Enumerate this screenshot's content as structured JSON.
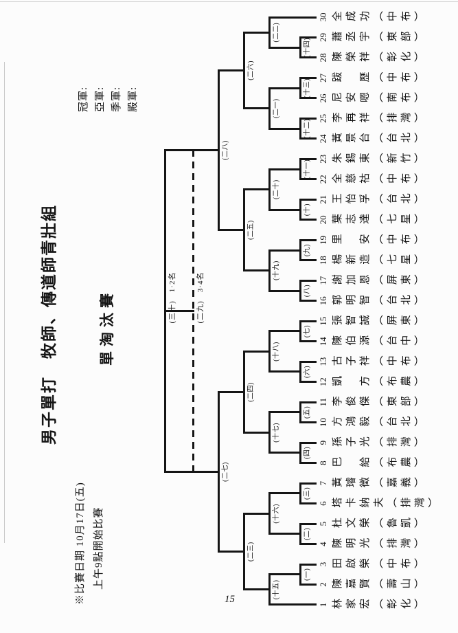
{
  "page": {
    "number": "15",
    "line_color": "#151515",
    "paper_color": "#fcfcfc"
  },
  "titles": {
    "main": "男子單打　牧師、傳道師青壯組",
    "sub": "單淘汰賽"
  },
  "ranks": {
    "items": [
      "冠軍:",
      "亞軍:",
      "季軍:",
      "殿軍:"
    ]
  },
  "notes": {
    "line1": "※比賽日期 10月17日(五)",
    "line2": "上午9點開始比賽"
  },
  "players": [
    {
      "no": 1,
      "name": "林家宏",
      "team": "彰化"
    },
    {
      "no": 2,
      "name": "陳嘉賢",
      "team": "壽山"
    },
    {
      "no": 3,
      "name": "田啟榮",
      "team": "中布"
    },
    {
      "no": 4,
      "name": "陳明光",
      "team": "排灣"
    },
    {
      "no": 5,
      "name": "杜文榮",
      "team": "魯凱"
    },
    {
      "no": 6,
      "name": "塔卡納夫",
      "team": "排灣"
    },
    {
      "no": 7,
      "name": "黃璿徵",
      "team": "嘉義"
    },
    {
      "no": 8,
      "name": "巴　給",
      "team": "布農"
    },
    {
      "no": 9,
      "name": "孫子光",
      "team": "排灣"
    },
    {
      "no": 10,
      "name": "方鴻毅",
      "team": "台北"
    },
    {
      "no": 11,
      "name": "李俊傑",
      "team": "東部"
    },
    {
      "no": 12,
      "name": "凱　方",
      "team": "布農"
    },
    {
      "no": 13,
      "name": "古子祥",
      "team": "中布"
    },
    {
      "no": 14,
      "name": "陳伯源",
      "team": "台中"
    },
    {
      "no": 15,
      "name": "張智誠",
      "team": "屏東"
    },
    {
      "no": 16,
      "name": "郭明智",
      "team": "台北"
    },
    {
      "no": 17,
      "name": "謝加恩",
      "team": "屏東"
    },
    {
      "no": 18,
      "name": "楊新造",
      "team": "七星"
    },
    {
      "no": 19,
      "name": "里　安",
      "team": "中布"
    },
    {
      "no": 20,
      "name": "葉志達",
      "team": "七星"
    },
    {
      "no": 21,
      "name": "王怡孚",
      "team": "台北"
    },
    {
      "no": 22,
      "name": "全慈祜",
      "team": "中布"
    },
    {
      "no": 23,
      "name": "朱錫東",
      "team": "新竹"
    },
    {
      "no": 24,
      "name": "黃景台",
      "team": "台北"
    },
    {
      "no": 25,
      "name": "李再祥",
      "team": "排灣"
    },
    {
      "no": 26,
      "name": "尼安嗯",
      "team": "南布"
    },
    {
      "no": 27,
      "name": "跋　歷",
      "team": "中布"
    },
    {
      "no": 28,
      "name": "陳榮祥",
      "team": "彰化"
    },
    {
      "no": 29,
      "name": "蕭丞宇",
      "team": "東部"
    },
    {
      "no": 30,
      "name": "全成功",
      "team": "中布"
    }
  ],
  "bracket": {
    "matches": [
      {
        "id": "M1",
        "label": "(一)",
        "round": 1,
        "a": "P2",
        "b": "P3"
      },
      {
        "id": "M2",
        "label": "(二)",
        "round": 1,
        "a": "P4",
        "b": "P5"
      },
      {
        "id": "M3",
        "label": "(三)",
        "round": 1,
        "a": "P6",
        "b": "P7"
      },
      {
        "id": "M4",
        "label": "(四)",
        "round": 1,
        "a": "P8",
        "b": "P9"
      },
      {
        "id": "M5",
        "label": "(五)",
        "round": 1,
        "a": "P10",
        "b": "P11"
      },
      {
        "id": "M6",
        "label": "(六)",
        "round": 1,
        "a": "P12",
        "b": "P13"
      },
      {
        "id": "M7",
        "label": "(七)",
        "round": 1,
        "a": "P14",
        "b": "P15"
      },
      {
        "id": "M8",
        "label": "(八)",
        "round": 1,
        "a": "P16",
        "b": "P17"
      },
      {
        "id": "M9",
        "label": "(九)",
        "round": 1,
        "a": "P18",
        "b": "P19"
      },
      {
        "id": "M10",
        "label": "(十)",
        "round": 1,
        "a": "P20",
        "b": "P21"
      },
      {
        "id": "M11",
        "label": "(十一)",
        "round": 1,
        "a": "P22",
        "b": "P23"
      },
      {
        "id": "M12",
        "label": "(十二)",
        "round": 1,
        "a": "P24",
        "b": "P25"
      },
      {
        "id": "M13",
        "label": "(十三)",
        "round": 1,
        "a": "P26",
        "b": "P27"
      },
      {
        "id": "M14",
        "label": "(十四)",
        "round": 1,
        "a": "P28",
        "b": "P29"
      },
      {
        "id": "M15",
        "label": "(十五)",
        "round": 2,
        "a": "P1",
        "b": "M1"
      },
      {
        "id": "M16",
        "label": "(十六)",
        "round": 2,
        "a": "M2",
        "b": "M3"
      },
      {
        "id": "M17",
        "label": "(十七)",
        "round": 2,
        "a": "M4",
        "b": "M5"
      },
      {
        "id": "M18",
        "label": "(十八)",
        "round": 2,
        "a": "M6",
        "b": "M7"
      },
      {
        "id": "M19",
        "label": "(十九)",
        "round": 2,
        "a": "M8",
        "b": "M9"
      },
      {
        "id": "M20",
        "label": "(二十)",
        "round": 2,
        "a": "M10",
        "b": "M11"
      },
      {
        "id": "M21",
        "label": "(二一)",
        "round": 2,
        "a": "M12",
        "b": "M13"
      },
      {
        "id": "M22",
        "label": "(二二)",
        "round": 2,
        "a": "M14",
        "b": "P30"
      },
      {
        "id": "M23",
        "label": "(二三)",
        "round": 3,
        "a": "M15",
        "b": "M16"
      },
      {
        "id": "M24",
        "label": "(二四)",
        "round": 3,
        "a": "M17",
        "b": "M18"
      },
      {
        "id": "M25",
        "label": "(二五)",
        "round": 3,
        "a": "M19",
        "b": "M20"
      },
      {
        "id": "M26",
        "label": "(二六)",
        "round": 3,
        "a": "M21",
        "b": "M22"
      },
      {
        "id": "M27",
        "label": "(二七)",
        "round": 4,
        "a": "M23",
        "b": "M24"
      },
      {
        "id": "M28",
        "label": "(二八)",
        "round": 4,
        "a": "M25",
        "b": "M26"
      }
    ],
    "final": {
      "id": "M30",
      "label": "(三十)",
      "places": "1·2名",
      "a": "M27",
      "b": "M28",
      "line": "solid"
    },
    "third": {
      "id": "M29",
      "label": "(二九)",
      "places": "3·4名",
      "line": "dashed"
    }
  }
}
